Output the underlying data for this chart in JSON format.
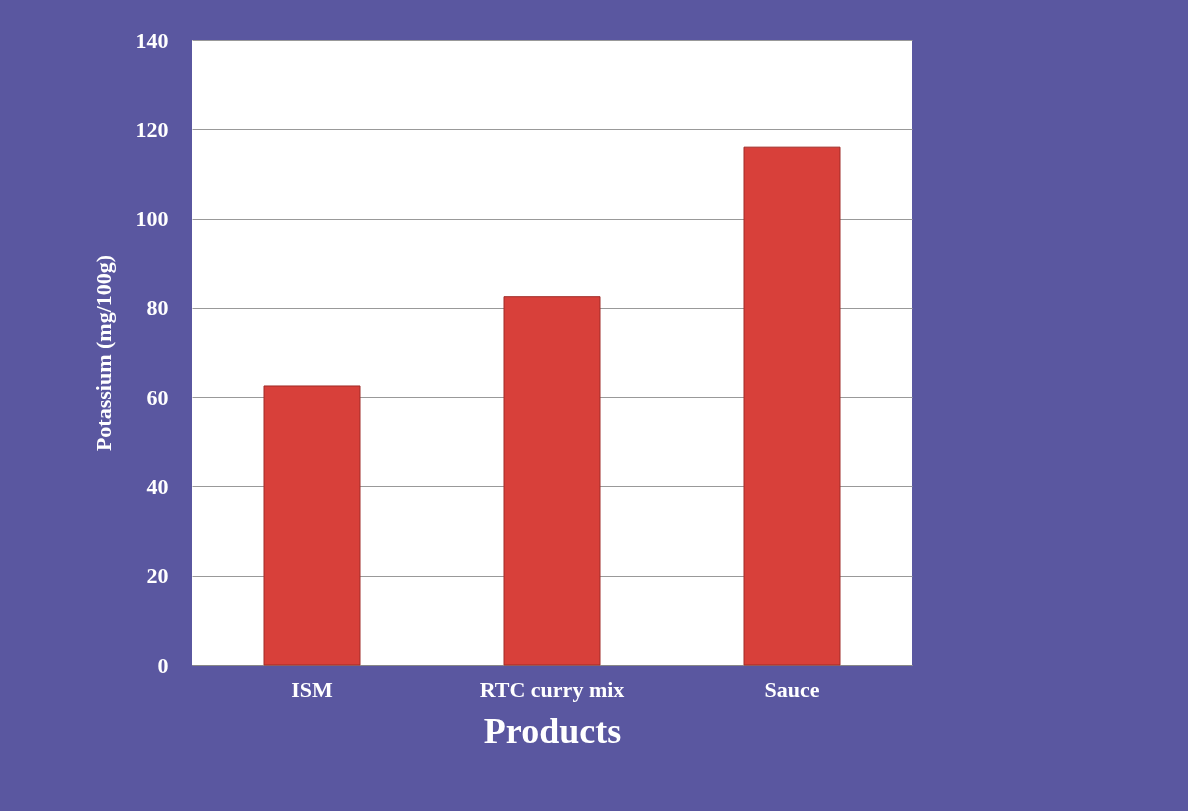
{
  "chart_data": {
    "type": "bar",
    "xlabel": "Products",
    "ylabel": "Potassium (mg/100g)",
    "categories": [
      "ISM",
      "RTC curry mix",
      "Sauce"
    ],
    "values": [
      62.5,
      82.5,
      116
    ],
    "color": "#d8403a",
    "ylim": [
      0,
      140
    ],
    "yticks": [
      0,
      20,
      40,
      60,
      80,
      100,
      120,
      140
    ],
    "grid": "y"
  }
}
